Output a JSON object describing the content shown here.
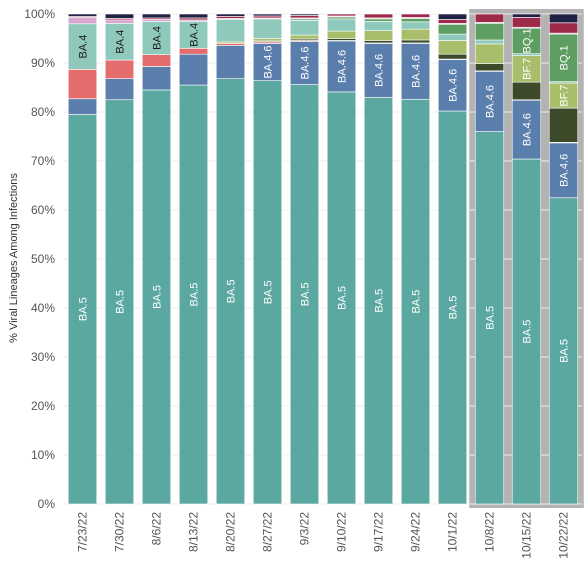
{
  "chart_data": {
    "type": "bar",
    "stacked": true,
    "ylabel": "% Viral Lineages Among Infections",
    "ylim": [
      0,
      100
    ],
    "yticks": [
      "0%",
      "10%",
      "20%",
      "30%",
      "40%",
      "50%",
      "60%",
      "70%",
      "80%",
      "90%",
      "100%"
    ],
    "grid": true,
    "categories": [
      "7/23/22",
      "7/30/22",
      "8/6/22",
      "8/13/22",
      "8/20/22",
      "8/27/22",
      "9/3/22",
      "9/10/22",
      "9/17/22",
      "9/24/22",
      "10/1/22",
      "10/8/22",
      "10/15/22",
      "10/22/22"
    ],
    "highlighted_categories": [
      "10/8/22",
      "10/15/22",
      "10/22/22"
    ],
    "series": [
      {
        "name": "BA.5",
        "color": "#5ba8a0",
        "values": [
          79.5,
          82.5,
          84.5,
          85.5,
          86.8,
          86.4,
          85.6,
          84.1,
          83.0,
          82.6,
          80.2,
          76.0,
          70.4,
          62.5
        ]
      },
      {
        "name": "BA.4.6",
        "color": "#5b7fad",
        "values": [
          3.2,
          4.3,
          4.8,
          6.3,
          6.8,
          7.6,
          8.8,
          10.4,
          11.0,
          11.4,
          10.5,
          12.3,
          12.0,
          11.2
        ]
      },
      {
        "name": "",
        "color": "#e46c6c",
        "values": [
          6.0,
          3.8,
          2.4,
          1.2,
          0.4,
          0.3,
          0.2,
          0.1,
          0.1,
          0.1,
          0.1,
          0.1,
          0.1,
          0.1
        ]
      },
      {
        "name": "",
        "color": "#3d4a2a",
        "values": [
          0,
          0,
          0,
          0,
          0,
          0.2,
          0.3,
          0.4,
          0.5,
          0.6,
          1.0,
          1.5,
          3.6,
          7.0
        ]
      },
      {
        "name": "BF.7",
        "color": "#a8be6a",
        "values": [
          0,
          0,
          0,
          0,
          0.3,
          0.5,
          0.8,
          1.5,
          2.0,
          2.2,
          2.8,
          4.0,
          5.4,
          5.1
        ]
      },
      {
        "name": "BA.4",
        "color": "#8ec9bb",
        "values": [
          9.3,
          7.5,
          6.8,
          5.5,
          4.6,
          4.0,
          3.0,
          2.5,
          1.9,
          1.5,
          1.3,
          0.8,
          0.4,
          0.3
        ]
      },
      {
        "name": "BQ.1",
        "color": "#5f9e62",
        "values": [
          0,
          0,
          0,
          0,
          0,
          0,
          0.3,
          0.4,
          0.5,
          0.7,
          2.0,
          3.4,
          5.2,
          9.7
        ]
      },
      {
        "name": "",
        "color": "#d8a8cf",
        "values": [
          1.3,
          0.7,
          0.4,
          0.3,
          0.2,
          0.2,
          0.2,
          0.2,
          0.2,
          0.2,
          0.2,
          0.2,
          0.2,
          0.2
        ]
      },
      {
        "name": "",
        "color": "#9e2a4a",
        "values": [
          0.2,
          0.3,
          0.3,
          0.4,
          0.4,
          0.4,
          0.5,
          0.4,
          0.8,
          0.7,
          0.8,
          1.7,
          2.0,
          2.1
        ]
      },
      {
        "name": "",
        "color": "#1f2244",
        "values": [
          0.5,
          0.9,
          0.8,
          0.8,
          0.5,
          0.4,
          0.3,
          0.0,
          0.0,
          0.0,
          1.1,
          0.0,
          0.7,
          1.8
        ]
      }
    ],
    "segment_labels": [
      {
        "series": "BA.5",
        "bars": "all",
        "text": "BA.5"
      },
      {
        "series": "BA.4.6",
        "bars": [
          5,
          6,
          7,
          8,
          9,
          10,
          11,
          12,
          13
        ],
        "text": "BA.4.6"
      },
      {
        "series": "BA.4",
        "bars": [
          0,
          1,
          2,
          3
        ],
        "text": "BA.4"
      },
      {
        "series": "BF.7",
        "bars": [
          12,
          13
        ],
        "text": "BF.7"
      },
      {
        "series": "BQ.1",
        "bars": [
          12,
          13
        ],
        "text": "BQ.1"
      }
    ]
  }
}
